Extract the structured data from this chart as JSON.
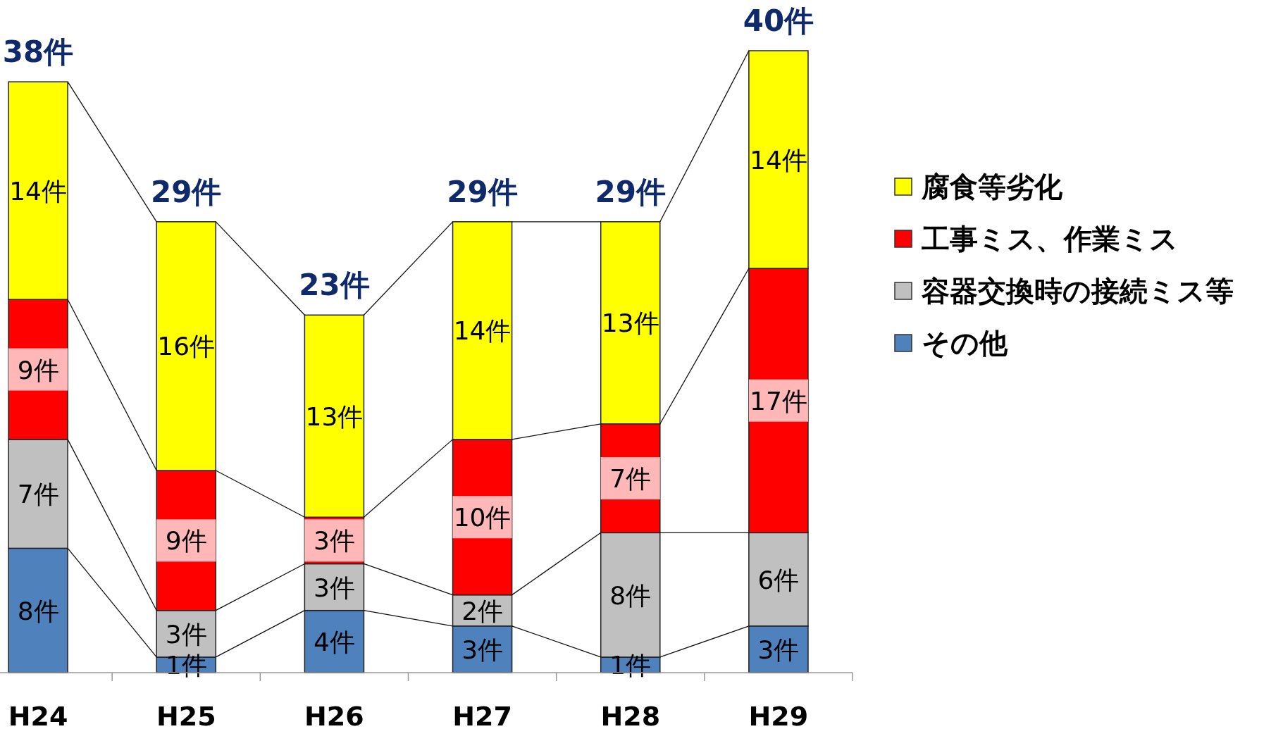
{
  "chart_data": {
    "type": "bar",
    "stacked": true,
    "legend": "right",
    "categories": [
      "H24",
      "H25",
      "H26",
      "H27",
      "H28",
      "H29"
    ],
    "series": [
      {
        "name": "その他",
        "color": "#4f81bd",
        "values": [
          8,
          1,
          4,
          3,
          1,
          3
        ],
        "value_labels": [
          "8件",
          "1件",
          "4件",
          "3件",
          "1件",
          "3件"
        ]
      },
      {
        "name": "容器交換時の接続ミス等",
        "color": "#c0c0c0",
        "values": [
          7,
          3,
          3,
          2,
          8,
          6
        ],
        "value_labels": [
          "7件",
          "3件",
          "3件",
          "2件",
          "8件",
          "6件"
        ]
      },
      {
        "name": "工事ミス、作業ミス",
        "color": "#ff0000",
        "values": [
          9,
          9,
          3,
          10,
          7,
          17
        ],
        "value_labels": [
          "9件",
          "9件",
          "3件",
          "10件",
          "7件",
          "17件"
        ]
      },
      {
        "name": "腐食等劣化",
        "color": "#ffff00",
        "values": [
          14,
          16,
          13,
          14,
          13,
          14
        ],
        "value_labels": [
          "14件",
          "16件",
          "13件",
          "14件",
          "13件",
          "14件"
        ]
      }
    ],
    "totals": [
      "38件",
      "29件",
      "23件",
      "29件",
      "29件",
      "40件"
    ]
  }
}
